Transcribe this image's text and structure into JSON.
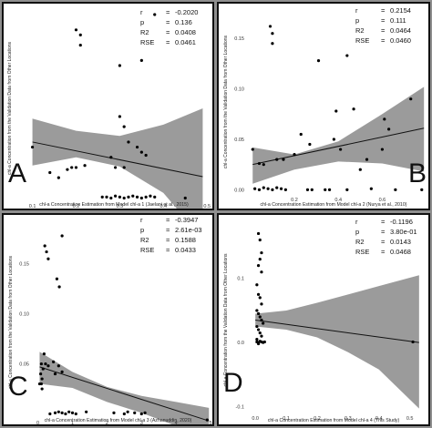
{
  "chart_data": [
    {
      "id": "A",
      "type": "scatter",
      "panel_letter": "A",
      "xlabel": "chl-a Concentration Estimation from Model chl-a 1 (Jaelani et al., 2015)",
      "ylabel": "chl-a Concentration from the Validation Data from Other Locations",
      "xlim": [
        0.08,
        0.51
      ],
      "ylim": [
        -0.004,
        0.18
      ],
      "xticks": [
        "0.1",
        "0.2",
        "0.3",
        "0.4",
        "0.5"
      ],
      "xtick_values": [
        0.1,
        0.2,
        0.3,
        0.4,
        0.5
      ],
      "yticks": [],
      "ytick_values": [],
      "stats": [
        {
          "k": "r",
          "v": "-0.2020"
        },
        {
          "k": "p",
          "v": "0.136"
        },
        {
          "k": "R2",
          "v": "0.0408"
        },
        {
          "k": "RSE",
          "v": "0.0461"
        }
      ],
      "fit": {
        "x0": 0.1,
        "y0": 0.055,
        "x1": 0.49,
        "y1": 0.021
      },
      "band_upper": [
        [
          0.1,
          0.078
        ],
        [
          0.2,
          0.066
        ],
        [
          0.3,
          0.061
        ],
        [
          0.4,
          0.072
        ],
        [
          0.49,
          0.088
        ]
      ],
      "band_lower": [
        [
          0.1,
          0.032
        ],
        [
          0.2,
          0.04
        ],
        [
          0.3,
          0.031
        ],
        [
          0.4,
          0.005
        ],
        [
          0.49,
          -0.04
        ]
      ],
      "points": [
        [
          0.2,
          0.165
        ],
        [
          0.21,
          0.16
        ],
        [
          0.21,
          0.15
        ],
        [
          0.38,
          0.18
        ],
        [
          0.3,
          0.13
        ],
        [
          0.35,
          0.135
        ],
        [
          0.14,
          0.025
        ],
        [
          0.16,
          0.02
        ],
        [
          0.19,
          0.03
        ],
        [
          0.2,
          0.03
        ],
        [
          0.22,
          0.032
        ],
        [
          0.28,
          0.04
        ],
        [
          0.3,
          0.08
        ],
        [
          0.31,
          0.07
        ],
        [
          0.32,
          0.055
        ],
        [
          0.34,
          0.05
        ],
        [
          0.35,
          0.045
        ],
        [
          0.36,
          0.042
        ],
        [
          0.29,
          0.03
        ],
        [
          0.31,
          0.03
        ],
        [
          0.26,
          0.001
        ],
        [
          0.27,
          0.001
        ],
        [
          0.28,
          0.0
        ],
        [
          0.29,
          0.002
        ],
        [
          0.3,
          0.001
        ],
        [
          0.31,
          0.0
        ],
        [
          0.32,
          0.001
        ],
        [
          0.33,
          0.002
        ],
        [
          0.34,
          0.001
        ],
        [
          0.35,
          0.0
        ],
        [
          0.36,
          0.001
        ],
        [
          0.37,
          0.002
        ],
        [
          0.38,
          0.001
        ],
        [
          0.45,
          0.0
        ],
        [
          0.1,
          0.05
        ],
        [
          0.18,
          0.028
        ]
      ]
    },
    {
      "id": "B",
      "type": "scatter",
      "panel_letter": "B",
      "xlabel": "chl-a Concentration Estimation from Model chl-a 2 (Nurya et al., 2010)",
      "ylabel": "chl-a Concentration from the Validation Data from Other Locations",
      "xlim": [
        -0.02,
        0.81
      ],
      "ylim": [
        -0.006,
        0.18
      ],
      "xticks": [
        "0.2",
        "0.4",
        "0.6"
      ],
      "xtick_values": [
        0.2,
        0.4,
        0.6
      ],
      "yticks": [
        "0.00",
        "0.05",
        "0.10",
        "0.15"
      ],
      "ytick_values": [
        0,
        0.05,
        0.1,
        0.15
      ],
      "stats": [
        {
          "k": "r",
          "v": "0.2154"
        },
        {
          "k": "p",
          "v": "0.111"
        },
        {
          "k": "R2",
          "v": "0.0464"
        },
        {
          "k": "RSE",
          "v": "0.0460"
        }
      ],
      "fit": {
        "x0": 0.01,
        "y0": 0.025,
        "x1": 0.79,
        "y1": 0.061
      },
      "band_upper": [
        [
          0.01,
          0.042
        ],
        [
          0.2,
          0.035
        ],
        [
          0.4,
          0.048
        ],
        [
          0.6,
          0.075
        ],
        [
          0.79,
          0.102
        ]
      ],
      "band_lower": [
        [
          0.01,
          0.006
        ],
        [
          0.2,
          0.02
        ],
        [
          0.4,
          0.028
        ],
        [
          0.6,
          0.026
        ],
        [
          0.79,
          0.018
        ]
      ],
      "points": [
        [
          0.09,
          0.162
        ],
        [
          0.1,
          0.155
        ],
        [
          0.1,
          0.145
        ],
        [
          0.31,
          0.128
        ],
        [
          0.44,
          0.133
        ],
        [
          0.39,
          0.078
        ],
        [
          0.47,
          0.08
        ],
        [
          0.01,
          0.04
        ],
        [
          0.04,
          0.026
        ],
        [
          0.06,
          0.025
        ],
        [
          0.12,
          0.03
        ],
        [
          0.15,
          0.03
        ],
        [
          0.2,
          0.035
        ],
        [
          0.23,
          0.055
        ],
        [
          0.27,
          0.045
        ],
        [
          0.38,
          0.05
        ],
        [
          0.41,
          0.04
        ],
        [
          0.5,
          0.02
        ],
        [
          0.53,
          0.03
        ],
        [
          0.6,
          0.04
        ],
        [
          0.61,
          0.07
        ],
        [
          0.63,
          0.06
        ],
        [
          0.73,
          0.09
        ],
        [
          0.78,
          0.0
        ],
        [
          0.02,
          0.001
        ],
        [
          0.04,
          0.0
        ],
        [
          0.06,
          0.002
        ],
        [
          0.08,
          0.001
        ],
        [
          0.1,
          0.0
        ],
        [
          0.12,
          0.002
        ],
        [
          0.14,
          0.001
        ],
        [
          0.16,
          0.0
        ],
        [
          0.26,
          0.0
        ],
        [
          0.28,
          0.0
        ],
        [
          0.34,
          0.0
        ],
        [
          0.36,
          0.0
        ],
        [
          0.44,
          0.0
        ],
        [
          0.66,
          0.0
        ],
        [
          0.55,
          0.001
        ]
      ]
    },
    {
      "id": "C",
      "type": "scatter",
      "panel_letter": "C",
      "xlabel": "chl-a Concentration Estimation from Model chl-a 3 (Azhanuddin, 2020)",
      "ylabel": "chl-a Concentration from the Validation Data from Other Locations",
      "xlim": [
        -0.2,
        5.05
      ],
      "ylim": [
        -0.005,
        0.188
      ],
      "xticks": [
        "0",
        "1",
        "2",
        "3",
        "4",
        "5"
      ],
      "xtick_values": [
        0,
        1,
        2,
        3,
        4,
        5
      ],
      "yticks": [
        "0.05",
        "0.10",
        "0.15"
      ],
      "ytick_values": [
        0.05,
        0.1,
        0.15
      ],
      "stats": [
        {
          "k": "r",
          "v": "-0.3947"
        },
        {
          "k": "p",
          "v": "2.61e-03"
        },
        {
          "k": "R2",
          "v": "0.1588"
        },
        {
          "k": "RSE",
          "v": "0.0433"
        }
      ],
      "fit": {
        "x0": 0.05,
        "y0": 0.047,
        "x1": 4.95,
        "y1": -0.007
      },
      "band_upper": [
        [
          0.05,
          0.062
        ],
        [
          1.0,
          0.042
        ],
        [
          2.0,
          0.027
        ],
        [
          3.0,
          0.018
        ],
        [
          4.0,
          0.012
        ],
        [
          4.95,
          0.006
        ]
      ],
      "band_lower": [
        [
          0.05,
          0.03
        ],
        [
          1.0,
          0.026
        ],
        [
          2.0,
          0.012
        ],
        [
          3.0,
          0.001
        ],
        [
          4.0,
          -0.012
        ],
        [
          4.95,
          -0.022
        ]
      ],
      "points": [
        [
          0.2,
          0.168
        ],
        [
          0.25,
          0.162
        ],
        [
          0.3,
          0.155
        ],
        [
          0.7,
          0.178
        ],
        [
          0.55,
          0.135
        ],
        [
          0.62,
          0.127
        ],
        [
          0.05,
          0.03
        ],
        [
          0.08,
          0.04
        ],
        [
          0.1,
          0.05
        ],
        [
          0.12,
          0.035
        ],
        [
          0.15,
          0.045
        ],
        [
          0.18,
          0.06
        ],
        [
          0.22,
          0.05
        ],
        [
          0.3,
          0.048
        ],
        [
          0.45,
          0.052
        ],
        [
          0.6,
          0.048
        ],
        [
          0.7,
          0.042
        ],
        [
          0.5,
          0.04
        ],
        [
          0.35,
          0.0
        ],
        [
          0.5,
          0.001
        ],
        [
          0.6,
          0.002
        ],
        [
          0.7,
          0.001
        ],
        [
          0.8,
          0.0
        ],
        [
          0.9,
          0.002
        ],
        [
          1.0,
          0.001
        ],
        [
          1.1,
          0.0
        ],
        [
          1.4,
          0.002
        ],
        [
          2.2,
          0.001
        ],
        [
          2.5,
          0.0
        ],
        [
          2.6,
          0.002
        ],
        [
          2.8,
          0.001
        ],
        [
          3.0,
          0.0
        ],
        [
          3.1,
          0.001
        ],
        [
          4.9,
          -0.006
        ],
        [
          0.1,
          0.03
        ],
        [
          0.12,
          0.025
        ]
      ]
    },
    {
      "id": "D",
      "type": "scatter",
      "panel_letter": "D",
      "xlabel": "chl-a Concentration Estimation from Model chl-a 4 (This Study)",
      "ylabel": "chl-a Concentration from the Validation Data from Other Locations",
      "xlim": [
        -0.03,
        0.56
      ],
      "ylim": [
        -0.112,
        0.182
      ],
      "xticks": [
        "0.0",
        "0.1",
        "0.2",
        "0.3",
        "0.4",
        "0.5"
      ],
      "xtick_values": [
        0,
        0.1,
        0.2,
        0.3,
        0.4,
        0.5
      ],
      "yticks": [
        "0.1",
        "0.0",
        "-0.1"
      ],
      "ytick_values": [
        0.1,
        0,
        -0.1
      ],
      "stats": [
        {
          "k": "r",
          "v": "-0.1196"
        },
        {
          "k": "p",
          "v": "3.80e-01"
        },
        {
          "k": "R2",
          "v": "0.0143"
        },
        {
          "k": "RSE",
          "v": "0.0468"
        }
      ],
      "fit": {
        "x0": 0.0,
        "y0": 0.035,
        "x1": 0.53,
        "y1": 0.0
      },
      "band_upper": [
        [
          0.0,
          0.045
        ],
        [
          0.1,
          0.05
        ],
        [
          0.2,
          0.062
        ],
        [
          0.3,
          0.075
        ],
        [
          0.4,
          0.088
        ],
        [
          0.53,
          0.105
        ]
      ],
      "band_lower": [
        [
          0.0,
          0.025
        ],
        [
          0.1,
          0.02
        ],
        [
          0.2,
          0.008
        ],
        [
          0.3,
          -0.015
        ],
        [
          0.4,
          -0.042
        ],
        [
          0.53,
          -0.103
        ]
      ],
      "points": [
        [
          0.01,
          0.17
        ],
        [
          0.015,
          0.16
        ],
        [
          0.02,
          0.14
        ],
        [
          0.015,
          0.13
        ],
        [
          0.01,
          0.12
        ],
        [
          0.02,
          0.11
        ],
        [
          0.005,
          0.09
        ],
        [
          0.01,
          0.075
        ],
        [
          0.015,
          0.07
        ],
        [
          0.02,
          0.06
        ],
        [
          0.005,
          0.05
        ],
        [
          0.01,
          0.045
        ],
        [
          0.015,
          0.04
        ],
        [
          0.02,
          0.035
        ],
        [
          0.025,
          0.03
        ],
        [
          0.005,
          0.025
        ],
        [
          0.01,
          0.02
        ],
        [
          0.015,
          0.015
        ],
        [
          0.02,
          0.01
        ],
        [
          0.005,
          0.005
        ],
        [
          0.01,
          0.0
        ],
        [
          0.015,
          0.002
        ],
        [
          0.02,
          0.001
        ],
        [
          0.025,
          0.0
        ],
        [
          0.01,
          -0.002
        ],
        [
          0.005,
          0.001
        ],
        [
          0.03,
          0.001
        ],
        [
          0.51,
          0.001
        ]
      ]
    }
  ]
}
